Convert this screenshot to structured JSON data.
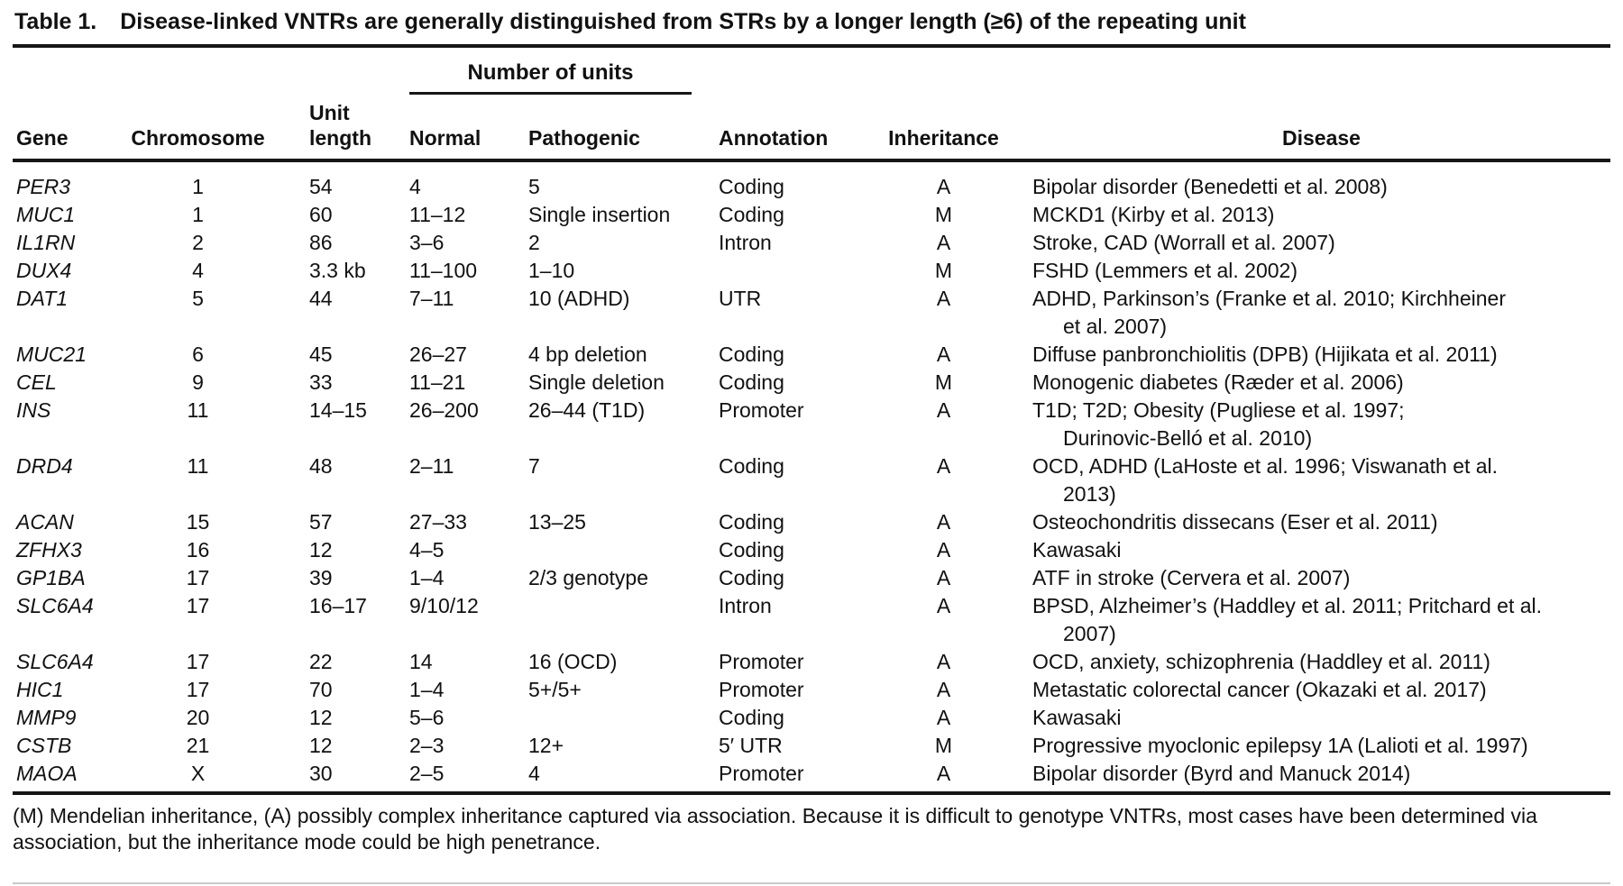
{
  "table": {
    "label": "Table 1.",
    "title": "Disease-linked VNTRs are generally distinguished from STRs by a longer length (≥6) of the repeating unit",
    "spanner": "Number of units",
    "columns": {
      "gene": "Gene",
      "chromosome": "Chromosome",
      "unit_length": "Unit length",
      "normal": "Normal",
      "pathogenic": "Pathogenic",
      "annotation": "Annotation",
      "inheritance": "Inheritance",
      "disease": "Disease"
    },
    "rows": [
      {
        "gene": "PER3",
        "chromosome": "1",
        "unit_length": "54",
        "normal": "4",
        "pathogenic": "5",
        "annotation": "Coding",
        "inheritance": "A",
        "disease": [
          "Bipolar disorder (Benedetti et al. 2008)"
        ]
      },
      {
        "gene": "MUC1",
        "chromosome": "1",
        "unit_length": "60",
        "normal": "11–12",
        "pathogenic": "Single insertion",
        "annotation": "Coding",
        "inheritance": "M",
        "disease": [
          "MCKD1 (Kirby et al. 2013)"
        ]
      },
      {
        "gene": "IL1RN",
        "chromosome": "2",
        "unit_length": "86",
        "normal": "3–6",
        "pathogenic": "2",
        "annotation": "Intron",
        "inheritance": "A",
        "disease": [
          "Stroke, CAD (Worrall et al. 2007)"
        ]
      },
      {
        "gene": "DUX4",
        "chromosome": "4",
        "unit_length": "3.3 kb",
        "normal": "11–100",
        "pathogenic": "1–10",
        "annotation": "",
        "inheritance": "M",
        "disease": [
          "FSHD (Lemmers et al. 2002)"
        ]
      },
      {
        "gene": "DAT1",
        "chromosome": "5",
        "unit_length": "44",
        "normal": "7–11",
        "pathogenic": "10 (ADHD)",
        "annotation": "UTR",
        "inheritance": "A",
        "disease": [
          "ADHD, Parkinson’s (Franke et al. 2010; Kirchheiner",
          "et al. 2007)"
        ]
      },
      {
        "gene": "MUC21",
        "chromosome": "6",
        "unit_length": "45",
        "normal": "26–27",
        "pathogenic": "4 bp deletion",
        "annotation": "Coding",
        "inheritance": "A",
        "disease": [
          "Diffuse panbronchiolitis (DPB) (Hijikata et al. 2011)"
        ]
      },
      {
        "gene": "CEL",
        "chromosome": "9",
        "unit_length": "33",
        "normal": "11–21",
        "pathogenic": "Single deletion",
        "annotation": "Coding",
        "inheritance": "M",
        "disease": [
          "Monogenic diabetes (Ræder et al. 2006)"
        ]
      },
      {
        "gene": "INS",
        "chromosome": "11",
        "unit_length": "14–15",
        "normal": "26–200",
        "pathogenic": "26–44 (T1D)",
        "annotation": "Promoter",
        "inheritance": "A",
        "disease": [
          "T1D; T2D; Obesity (Pugliese et al. 1997;",
          "Durinovic-Belló et al. 2010)"
        ]
      },
      {
        "gene": "DRD4",
        "chromosome": "11",
        "unit_length": "48",
        "normal": "2–11",
        "pathogenic": "7",
        "annotation": "Coding",
        "inheritance": "A",
        "disease": [
          "OCD, ADHD (LaHoste et al. 1996; Viswanath et al.",
          "2013)"
        ]
      },
      {
        "gene": "ACAN",
        "chromosome": "15",
        "unit_length": "57",
        "normal": "27–33",
        "pathogenic": "13–25",
        "annotation": "Coding",
        "inheritance": "A",
        "disease": [
          "Osteochondritis dissecans (Eser et al. 2011)"
        ]
      },
      {
        "gene": "ZFHX3",
        "chromosome": "16",
        "unit_length": "12",
        "normal": "4–5",
        "pathogenic": "",
        "annotation": "Coding",
        "inheritance": "A",
        "disease": [
          "Kawasaki"
        ]
      },
      {
        "gene": "GP1BA",
        "chromosome": "17",
        "unit_length": "39",
        "normal": "1–4",
        "pathogenic": "2/3 genotype",
        "annotation": "Coding",
        "inheritance": "A",
        "disease": [
          "ATF in stroke (Cervera et al. 2007)"
        ]
      },
      {
        "gene": "SLC6A4",
        "chromosome": "17",
        "unit_length": "16–17",
        "normal": "9/10/12",
        "pathogenic": "",
        "annotation": "Intron",
        "inheritance": "A",
        "disease": [
          "BPSD, Alzheimer’s (Haddley et al. 2011; Pritchard et al.",
          "2007)"
        ]
      },
      {
        "gene": "SLC6A4",
        "chromosome": "17",
        "unit_length": "22",
        "normal": "14",
        "pathogenic": "16 (OCD)",
        "annotation": "Promoter",
        "inheritance": "A",
        "disease": [
          "OCD, anxiety, schizophrenia (Haddley et al. 2011)"
        ]
      },
      {
        "gene": "HIC1",
        "chromosome": "17",
        "unit_length": "70",
        "normal": "1–4",
        "pathogenic": "5+/5+",
        "annotation": "Promoter",
        "inheritance": "A",
        "disease": [
          "Metastatic colorectal cancer (Okazaki et al. 2017)"
        ]
      },
      {
        "gene": "MMP9",
        "chromosome": "20",
        "unit_length": "12",
        "normal": "5–6",
        "pathogenic": "",
        "annotation": "Coding",
        "inheritance": "A",
        "disease": [
          "Kawasaki"
        ]
      },
      {
        "gene": "CSTB",
        "chromosome": "21",
        "unit_length": "12",
        "normal": "2–3",
        "pathogenic": "12+",
        "annotation": "5′ UTR",
        "inheritance": "M",
        "disease": [
          "Progressive myoclonic epilepsy 1A (Lalioti et al. 1997)"
        ]
      },
      {
        "gene": "MAOA",
        "chromosome": "X",
        "unit_length": "30",
        "normal": "2–5",
        "pathogenic": "4",
        "annotation": "Promoter",
        "inheritance": "A",
        "disease": [
          "Bipolar disorder (Byrd and Manuck 2014)"
        ]
      }
    ],
    "footnote": "(M) Mendelian inheritance, (A) possibly complex inheritance captured via association. Because it is difficult to genotype VNTRs, most cases have been determined via association, but the inheritance mode could be high penetrance."
  }
}
